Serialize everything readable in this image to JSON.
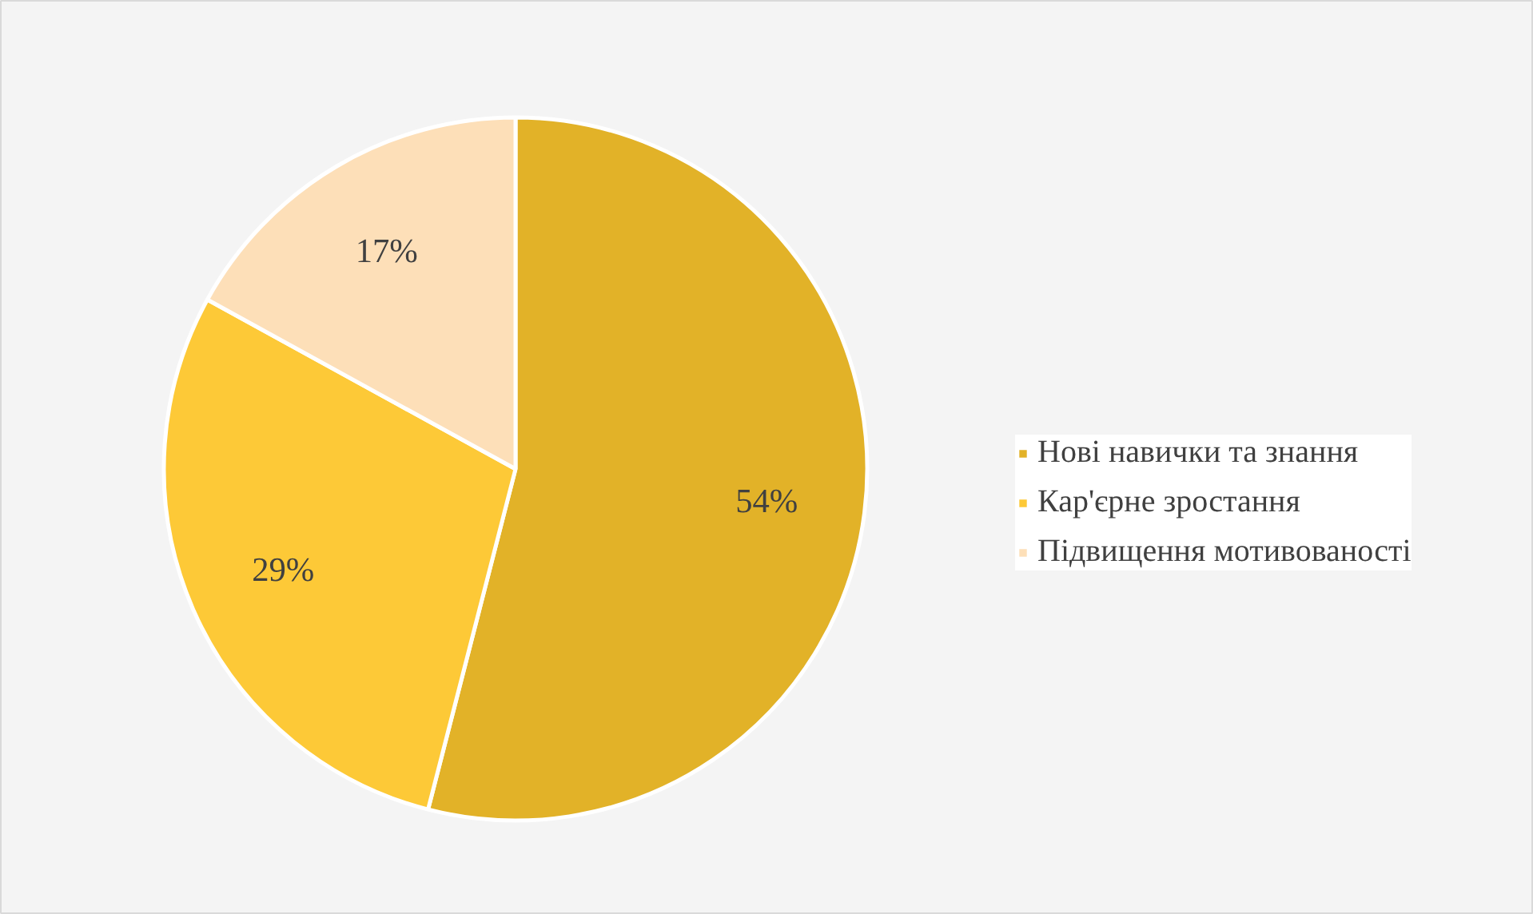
{
  "chart_data": {
    "type": "pie",
    "categories": [
      "Нові навички та знання",
      "Кар'єрне зростання",
      "Підвищення мотивованості"
    ],
    "values": [
      54,
      29,
      17
    ],
    "colors": [
      "#e2b228",
      "#fdc937",
      "#fddfb8"
    ],
    "value_labels": [
      "54%",
      "29%",
      "17%"
    ],
    "legend": "right"
  }
}
